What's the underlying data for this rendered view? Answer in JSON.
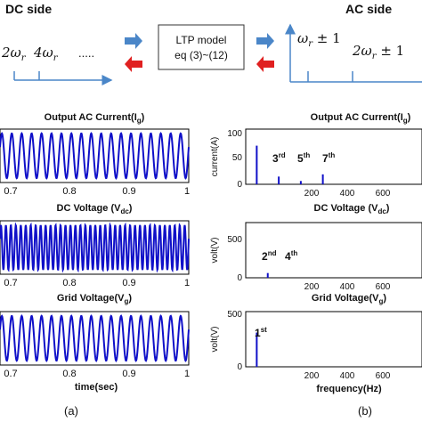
{
  "diagram": {
    "dc_side_title": "DC side",
    "ac_side_title": "AC side",
    "model_box": {
      "line1": "LTP model",
      "line2": "eq (3)~(12)"
    },
    "dc_harmonics": [
      "2ω",
      "4ω",
      "....."
    ],
    "dc_subscript": "r",
    "ac_harmonics": [
      "ω",
      " ± 1",
      "2ω",
      " ± 1"
    ],
    "ac_subscript": "r",
    "colors": {
      "forward_arrow": "#4a86c8",
      "backward_arrow": "#e02020",
      "waveform": "#1010c8",
      "spectrum": "#1010c8"
    }
  },
  "time_panels": [
    {
      "title": "Output AC Current(I",
      "sub": "g",
      "close": ")",
      "cycles": 19,
      "ticks": [
        "0.7",
        "0.8",
        "0.9",
        "1"
      ]
    },
    {
      "title": "DC Voltage (V",
      "sub": "dc",
      "close": ")",
      "cycles": 38,
      "ticks": [
        "0.7",
        "0.8",
        "0.9",
        "1"
      ]
    },
    {
      "title": "Grid Voltage(V",
      "sub": "g",
      "close": ")",
      "cycles": 19,
      "ticks": [
        "0.7",
        "0.8",
        "0.9",
        "1"
      ],
      "xlabel": "time(sec)"
    }
  ],
  "freq_panels": [
    {
      "title": "Output AC Current(I",
      "sub": "g",
      "close": ")",
      "ylabel": "current(A)",
      "yticks": [
        "100",
        "50",
        "0"
      ],
      "ymax": 100,
      "xticks": [
        "200",
        "400",
        "600"
      ],
      "bars": [
        [
          50,
          70
        ],
        [
          150,
          14
        ],
        [
          250,
          6
        ],
        [
          350,
          18
        ]
      ],
      "annotations": [
        [
          "3",
          "rd"
        ],
        [
          "5",
          "th"
        ],
        [
          "7",
          "th"
        ]
      ]
    },
    {
      "title": "DC Voltage (V",
      "sub": "dc",
      "close": ")",
      "ylabel": "volt(V)",
      "yticks": [
        "500",
        "0"
      ],
      "ymax": 700,
      "xticks": [
        "200",
        "400",
        "600"
      ],
      "bars": [
        [
          100,
          60
        ]
      ],
      "annotations": [
        [
          "2",
          "nd"
        ],
        [
          "4",
          "th"
        ]
      ]
    },
    {
      "title": "Grid Voltage(V",
      "sub": "g",
      "close": ")",
      "ylabel": "volt(V)",
      "yticks": [
        "500",
        "0"
      ],
      "ymax": 500,
      "xticks": [
        "200",
        "400",
        "600"
      ],
      "bars": [
        [
          50,
          310
        ]
      ],
      "annotations": [
        [
          "1",
          "st"
        ]
      ],
      "xlabel": "frequency(Hz)"
    }
  ],
  "captions": {
    "left": "(a)",
    "right": "(b)"
  }
}
